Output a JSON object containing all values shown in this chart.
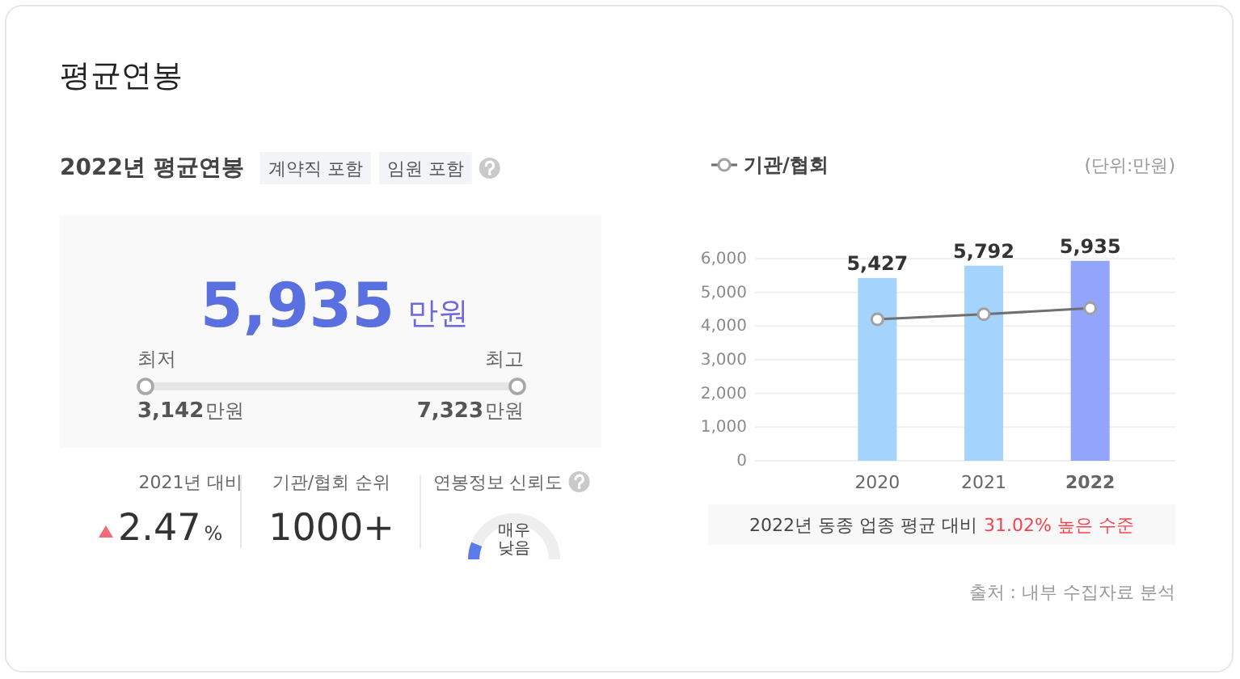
{
  "chart_data": [
    {
      "type": "other",
      "title": "평균연봉",
      "subtitle": "2022년 평균연봉",
      "annotations": [
        "계약직 포함",
        "임원 포함",
        "5,935",
        "만원",
        "최저",
        "최고",
        "3,142",
        "만원",
        "7,323",
        "만원",
        "2021년 대비",
        "2.47",
        "%",
        "기관/협회 순위",
        "1000+",
        "연봉정보 신뢰도",
        "매우 낮음"
      ]
    },
    {
      "type": "bar",
      "categories": [
        "2020",
        "2021",
        "2022"
      ],
      "series": [
        {
          "colors": [
            "#a4d3fc",
            "#a4d3fc",
            "#93a4fb"
          ],
          "values": [
            5427,
            5792,
            5935
          ],
          "value_labels": [
            "5,427",
            "5,792",
            "5,935"
          ]
        },
        {
          "name": "기관/협회",
          "type": "line",
          "color": "#707070",
          "marker": "circle",
          "values": [
            4200,
            4350,
            4530
          ]
        }
      ],
      "ylim": [
        0,
        6000
      ],
      "yticks": [
        0,
        {
          "value": 1000,
          "label": "1,000"
        },
        {
          "value": 2000,
          "label": "2,000"
        },
        {
          "value": 3000,
          "label": "3,000"
        },
        {
          "value": 4000,
          "label": "4,000"
        },
        {
          "value": 5000,
          "label": "5,000"
        },
        {
          "value": 6000,
          "label": "6,000"
        }
      ],
      "grid": "y",
      "legend": "top left",
      "annotations": [
        "(단위:만원)",
        "2022년 동종 업종 평균 대비",
        "31.02% 높은 수준",
        "출처 : 내부 수집자료 분석"
      ]
    }
  ]
}
